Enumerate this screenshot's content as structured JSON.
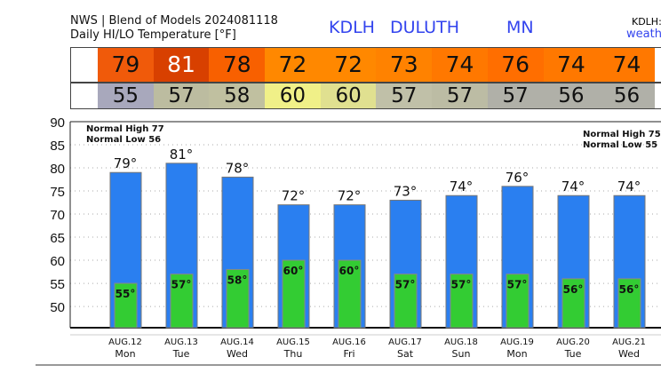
{
  "header": {
    "line1": "NWS | Blend of Models 2024081118",
    "line2": "Daily HI/LO Temperature [°F]",
    "station": "KDLH",
    "city": "DULUTH",
    "state": "MN",
    "right_top": "KDLH:",
    "right_link": "weath"
  },
  "colors": {
    "high_bar": "#2a7ff0",
    "low_bar": "#33cc33",
    "high_cells": [
      "#f05a0a",
      "#d84000",
      "#f86000",
      "#ff8800",
      "#ff8800",
      "#ff8200",
      "#ff7800",
      "#ff6e00",
      "#ff7800",
      "#ff7800"
    ],
    "low_cells": [
      "#a8a8bc",
      "#bcbca0",
      "#c0c0a0",
      "#f0f088",
      "#e0e090",
      "#c0c0a8",
      "#bcbca4",
      "#b0b0a8",
      "#b0b0a8",
      "#b0b0a8"
    ]
  },
  "chart_data": {
    "type": "bar",
    "ylim": [
      45.4,
      90
    ],
    "yticks": [
      50,
      55,
      60,
      65,
      70,
      75,
      80,
      85,
      90
    ],
    "grid": true,
    "categories": [
      "AUG.12",
      "AUG.13",
      "AUG.14",
      "AUG.15",
      "AUG.16",
      "AUG.17",
      "AUG.18",
      "AUG.19",
      "AUG.20",
      "AUG.21"
    ],
    "days": [
      "Mon",
      "Tue",
      "Wed",
      "Thu",
      "Fri",
      "Sat",
      "Sun",
      "Mon",
      "Tue",
      "Wed"
    ],
    "series": [
      {
        "name": "HI",
        "values": [
          79,
          81,
          78,
          72,
          72,
          73,
          74,
          76,
          74,
          74
        ]
      },
      {
        "name": "LO",
        "values": [
          55,
          57,
          58,
          60,
          60,
          57,
          57,
          57,
          56,
          56
        ]
      }
    ],
    "annotations": {
      "left": [
        "Normal High 77",
        "Normal Low 56"
      ],
      "right": [
        "Normal High 75",
        "Normal Low 55"
      ]
    }
  }
}
